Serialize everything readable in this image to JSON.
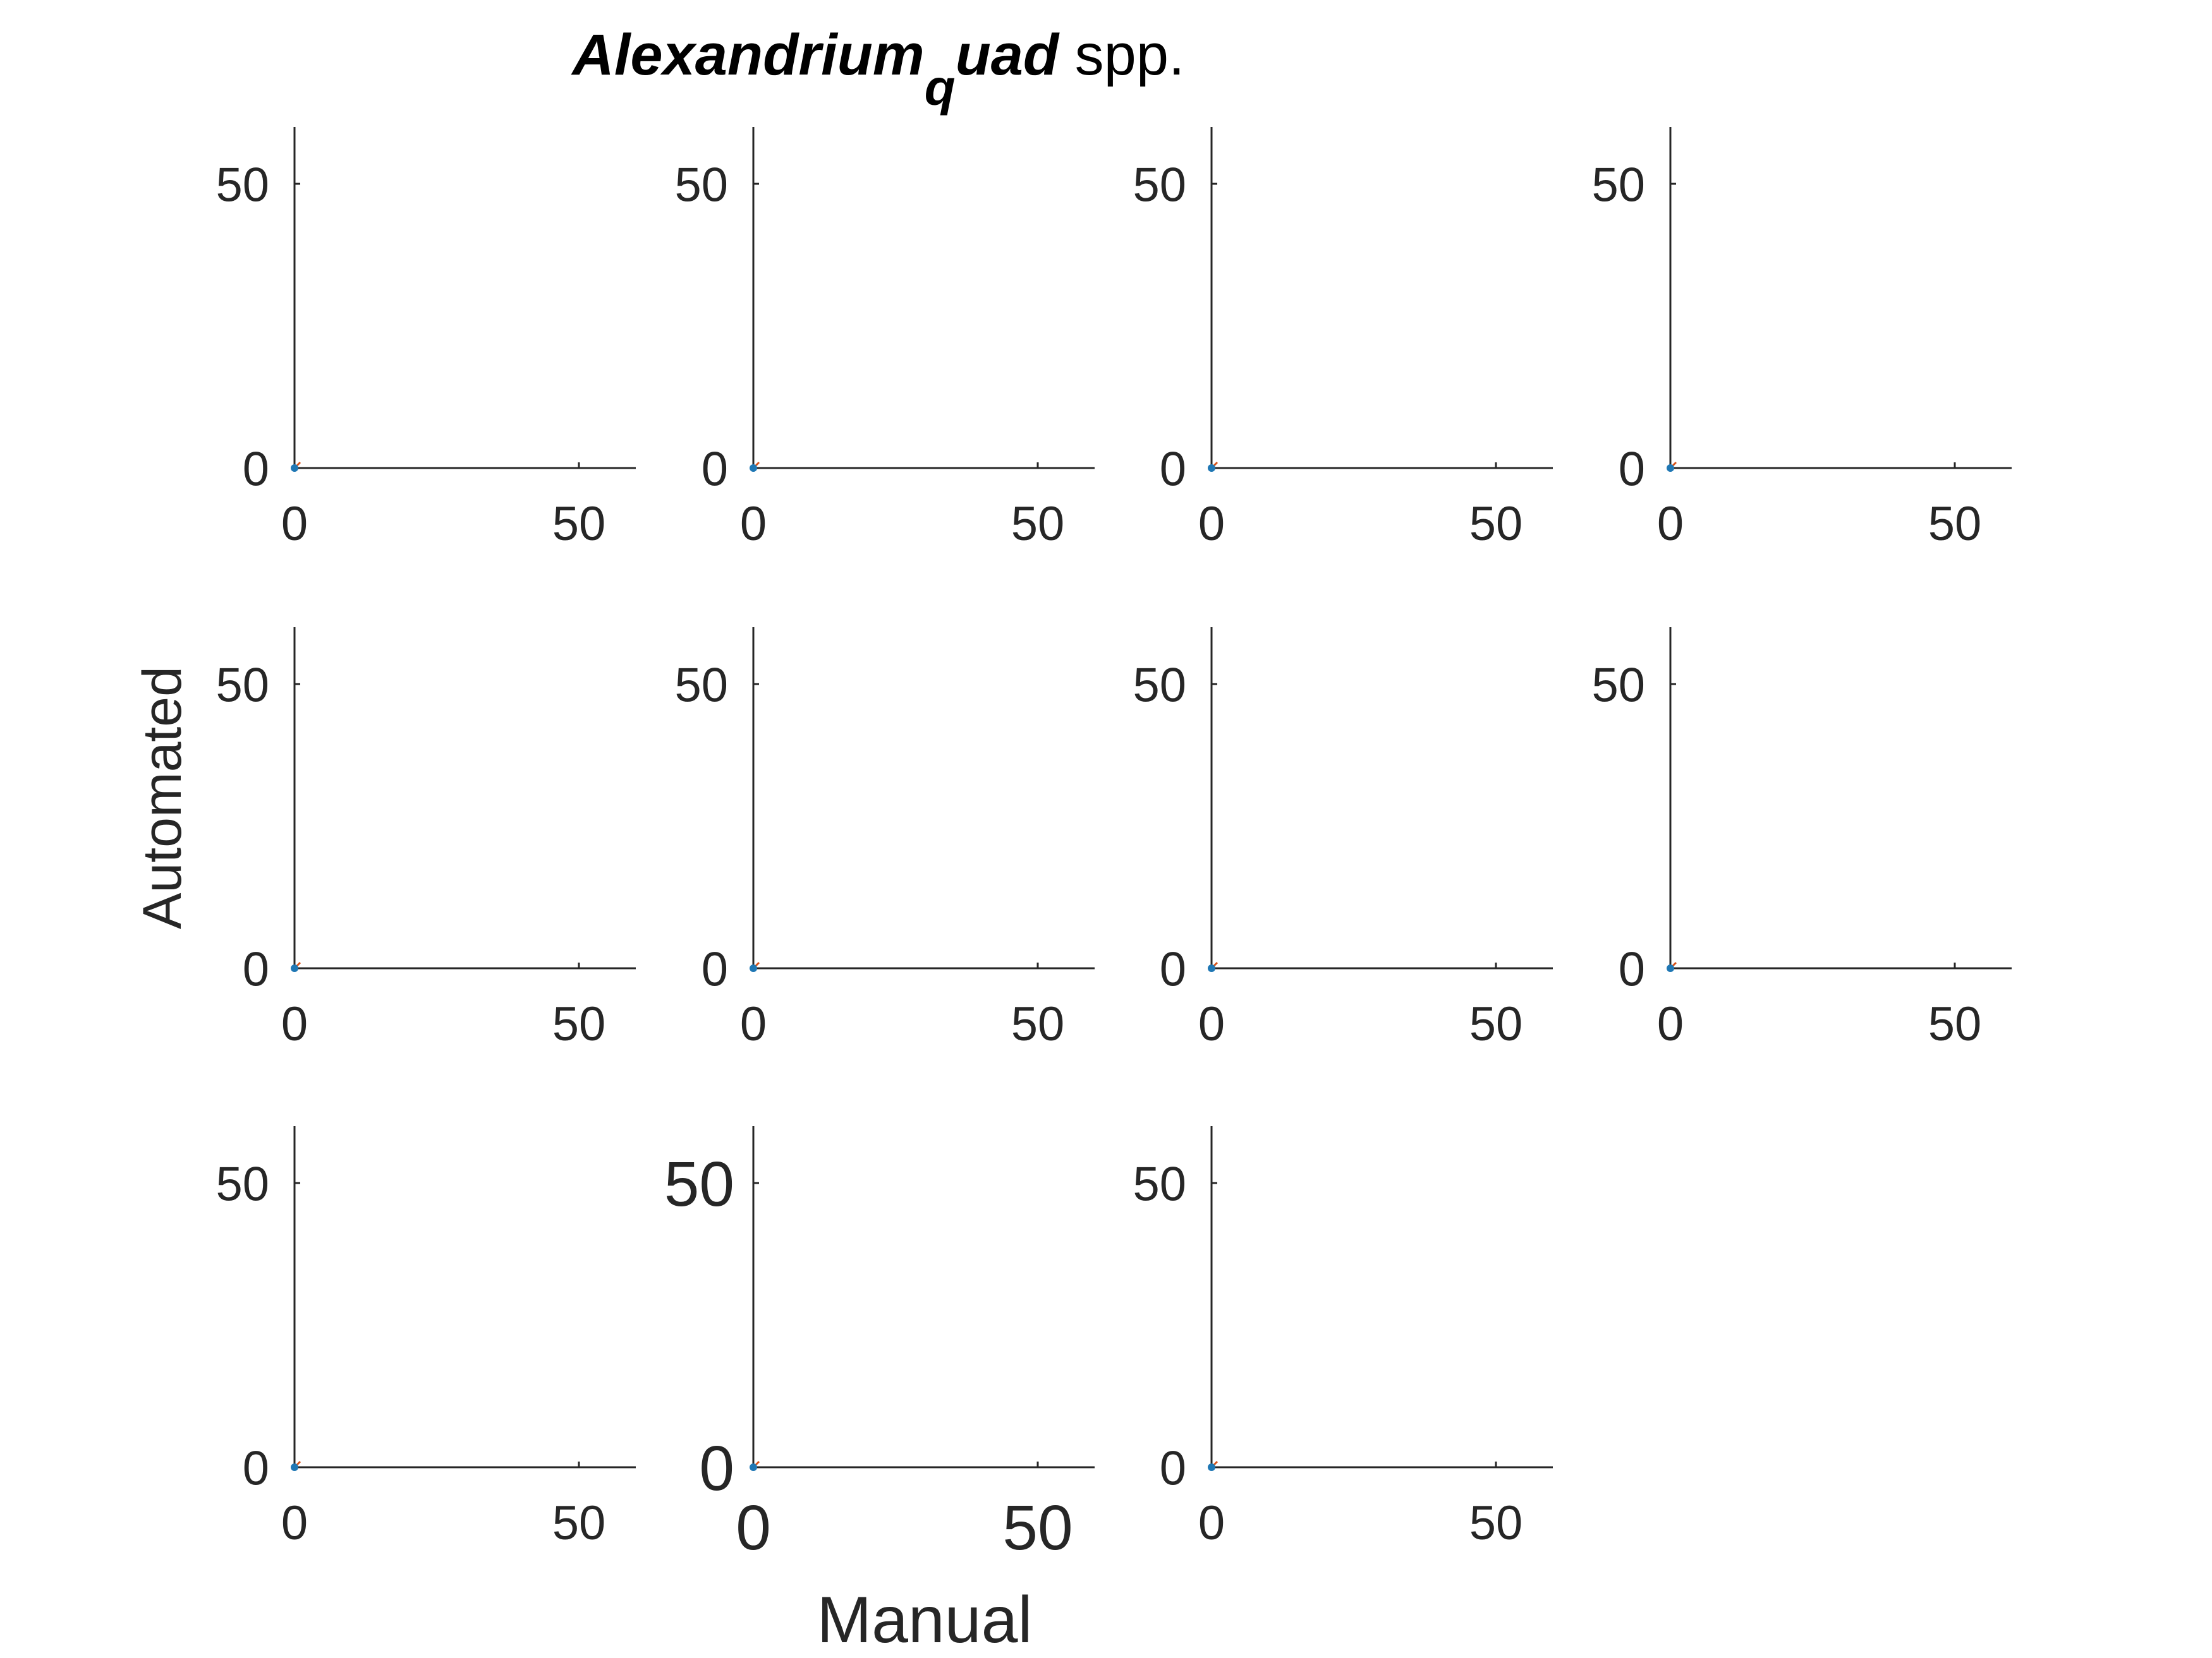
{
  "title": {
    "italic_part": "Alexandrium",
    "subscript": "q",
    "italic_rest": "uad",
    "plain_part": " spp."
  },
  "shared_xlabel": "Manual",
  "shared_ylabel": "Automated",
  "colors": {
    "axis": "#262626",
    "point": "#1f77b4",
    "fit_line": "#d95319",
    "background": "#ffffff"
  },
  "chart_data": [
    {
      "type": "scatter",
      "xlim": [
        0,
        60
      ],
      "ylim": [
        0,
        60
      ],
      "xticks": [
        0,
        50
      ],
      "yticks": [
        0,
        50
      ],
      "x": [
        0
      ],
      "y": [
        0
      ],
      "fit": [
        [
          0,
          0
        ],
        [
          1,
          1
        ]
      ],
      "grid": false
    },
    {
      "type": "scatter",
      "xlim": [
        0,
        60
      ],
      "ylim": [
        0,
        60
      ],
      "xticks": [
        0,
        50
      ],
      "yticks": [
        0,
        50
      ],
      "x": [
        0
      ],
      "y": [
        0
      ],
      "fit": [
        [
          0,
          0
        ],
        [
          1,
          1
        ]
      ],
      "grid": false
    },
    {
      "type": "scatter",
      "xlim": [
        0,
        60
      ],
      "ylim": [
        0,
        60
      ],
      "xticks": [
        0,
        50
      ],
      "yticks": [
        0,
        50
      ],
      "x": [
        0
      ],
      "y": [
        0
      ],
      "fit": [
        [
          0,
          0
        ],
        [
          1,
          1
        ]
      ],
      "grid": false
    },
    {
      "type": "scatter",
      "xlim": [
        0,
        60
      ],
      "ylim": [
        0,
        60
      ],
      "xticks": [
        0,
        50
      ],
      "yticks": [
        0,
        50
      ],
      "x": [
        0
      ],
      "y": [
        0
      ],
      "fit": [
        [
          0,
          0
        ],
        [
          1,
          1
        ]
      ],
      "grid": false
    },
    {
      "type": "scatter",
      "xlim": [
        0,
        60
      ],
      "ylim": [
        0,
        60
      ],
      "xticks": [
        0,
        50
      ],
      "yticks": [
        0,
        50
      ],
      "x": [
        0
      ],
      "y": [
        0
      ],
      "fit": [
        [
          0,
          0
        ],
        [
          1,
          1
        ]
      ],
      "grid": false
    },
    {
      "type": "scatter",
      "xlim": [
        0,
        60
      ],
      "ylim": [
        0,
        60
      ],
      "xticks": [
        0,
        50
      ],
      "yticks": [
        0,
        50
      ],
      "x": [
        0
      ],
      "y": [
        0
      ],
      "fit": [
        [
          0,
          0
        ],
        [
          1,
          1
        ]
      ],
      "grid": false
    },
    {
      "type": "scatter",
      "xlim": [
        0,
        60
      ],
      "ylim": [
        0,
        60
      ],
      "xticks": [
        0,
        50
      ],
      "yticks": [
        0,
        50
      ],
      "x": [
        0
      ],
      "y": [
        0
      ],
      "fit": [
        [
          0,
          0
        ],
        [
          1,
          1
        ]
      ],
      "grid": false
    },
    {
      "type": "scatter",
      "xlim": [
        0,
        60
      ],
      "ylim": [
        0,
        60
      ],
      "xticks": [
        0,
        50
      ],
      "yticks": [
        0,
        50
      ],
      "x": [
        0
      ],
      "y": [
        0
      ],
      "fit": [
        [
          0,
          0
        ],
        [
          1,
          1
        ]
      ],
      "grid": false
    },
    {
      "type": "scatter",
      "xlim": [
        0,
        60
      ],
      "ylim": [
        0,
        60
      ],
      "xticks": [
        0,
        50
      ],
      "yticks": [
        0,
        50
      ],
      "x": [
        0
      ],
      "y": [
        0
      ],
      "fit": [
        [
          0,
          0
        ],
        [
          1,
          1
        ]
      ],
      "grid": false
    },
    {
      "type": "scatter",
      "xlim": [
        0,
        60
      ],
      "ylim": [
        0,
        60
      ],
      "xticks": [
        0,
        50
      ],
      "yticks": [
        0,
        50
      ],
      "x": [
        0
      ],
      "y": [
        0
      ],
      "fit": [
        [
          0,
          0
        ],
        [
          1,
          1
        ]
      ],
      "grid": false
    },
    {
      "type": "scatter",
      "xlim": [
        0,
        60
      ],
      "ylim": [
        0,
        60
      ],
      "xticks": [
        0,
        50
      ],
      "yticks": [
        0,
        50
      ],
      "x": [
        0
      ],
      "y": [
        0
      ],
      "fit": [
        [
          0,
          0
        ],
        [
          1,
          1
        ]
      ],
      "grid": false
    }
  ]
}
